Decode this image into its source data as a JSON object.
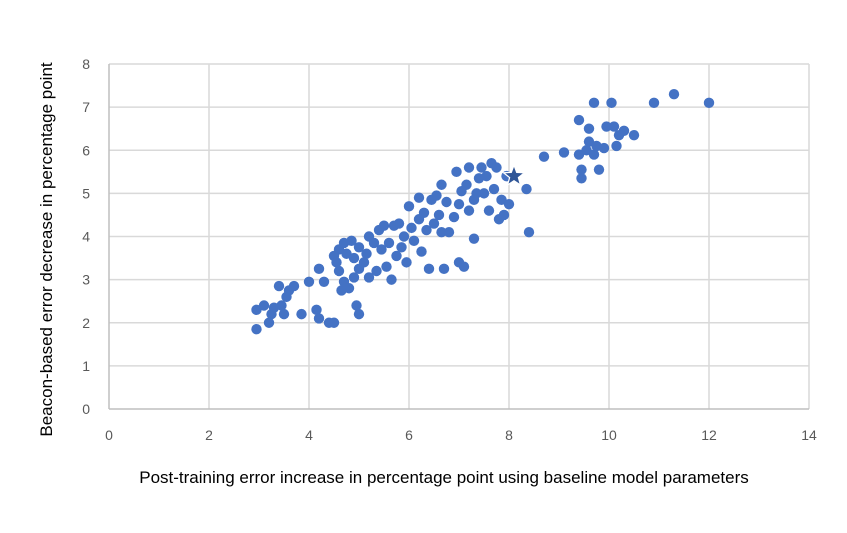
{
  "chart_data": {
    "type": "scatter",
    "title": "",
    "xlabel": "Post-training error increase in percentage point using baseline model parameters",
    "ylabel": "Beacon-based error decrease in percentage point",
    "xlim": [
      0,
      14
    ],
    "ylim": [
      0,
      8
    ],
    "xticks": [
      0,
      2,
      4,
      6,
      8,
      10,
      12,
      14
    ],
    "yticks": [
      0,
      1,
      2,
      3,
      4,
      5,
      6,
      7,
      8
    ],
    "grid": true,
    "legend": "none",
    "colors": {
      "point": "#4472C4",
      "highlight": "#2F5597",
      "grid": "#D9D9D9",
      "axis": "#BFBFBF"
    },
    "series": [
      {
        "points": [
          [
            2.95,
            1.85
          ],
          [
            2.95,
            2.3
          ],
          [
            3.1,
            2.4
          ],
          [
            3.2,
            2.0
          ],
          [
            3.25,
            2.2
          ],
          [
            3.3,
            2.35
          ],
          [
            3.4,
            2.85
          ],
          [
            3.45,
            2.4
          ],
          [
            3.5,
            2.2
          ],
          [
            3.55,
            2.6
          ],
          [
            3.6,
            2.75
          ],
          [
            3.7,
            2.85
          ],
          [
            3.85,
            2.2
          ],
          [
            4.0,
            2.95
          ],
          [
            4.15,
            2.3
          ],
          [
            4.2,
            3.25
          ],
          [
            4.2,
            2.1
          ],
          [
            4.3,
            2.95
          ],
          [
            4.4,
            2.0
          ],
          [
            4.5,
            2.0
          ],
          [
            4.5,
            3.55
          ],
          [
            4.55,
            3.4
          ],
          [
            4.6,
            3.2
          ],
          [
            4.6,
            3.7
          ],
          [
            4.65,
            2.75
          ],
          [
            4.7,
            3.85
          ],
          [
            4.7,
            2.95
          ],
          [
            4.75,
            3.6
          ],
          [
            4.8,
            2.8
          ],
          [
            4.85,
            3.9
          ],
          [
            4.9,
            3.05
          ],
          [
            4.9,
            3.5
          ],
          [
            4.95,
            2.4
          ],
          [
            5.0,
            3.75
          ],
          [
            5.0,
            3.25
          ],
          [
            5.0,
            2.2
          ],
          [
            5.1,
            3.4
          ],
          [
            5.15,
            3.6
          ],
          [
            5.2,
            3.05
          ],
          [
            5.2,
            4.0
          ],
          [
            5.3,
            3.85
          ],
          [
            5.35,
            3.2
          ],
          [
            5.4,
            4.15
          ],
          [
            5.45,
            3.7
          ],
          [
            5.5,
            4.25
          ],
          [
            5.55,
            3.3
          ],
          [
            5.6,
            3.85
          ],
          [
            5.65,
            3.0
          ],
          [
            5.7,
            4.25
          ],
          [
            5.75,
            3.55
          ],
          [
            5.8,
            4.3
          ],
          [
            5.85,
            3.75
          ],
          [
            5.9,
            4.0
          ],
          [
            5.95,
            3.4
          ],
          [
            6.0,
            4.7
          ],
          [
            6.05,
            4.2
          ],
          [
            6.1,
            3.9
          ],
          [
            6.2,
            4.9
          ],
          [
            6.2,
            4.4
          ],
          [
            6.25,
            3.65
          ],
          [
            6.3,
            4.55
          ],
          [
            6.35,
            4.15
          ],
          [
            6.4,
            3.25
          ],
          [
            6.45,
            4.85
          ],
          [
            6.5,
            4.3
          ],
          [
            6.55,
            4.95
          ],
          [
            6.6,
            4.5
          ],
          [
            6.65,
            4.1
          ],
          [
            6.65,
            5.2
          ],
          [
            6.7,
            3.25
          ],
          [
            6.75,
            4.8
          ],
          [
            6.8,
            4.1
          ],
          [
            6.9,
            4.45
          ],
          [
            6.95,
            5.5
          ],
          [
            7.0,
            3.4
          ],
          [
            7.0,
            4.75
          ],
          [
            7.05,
            5.05
          ],
          [
            7.1,
            3.3
          ],
          [
            7.15,
            5.2
          ],
          [
            7.2,
            4.6
          ],
          [
            7.2,
            5.6
          ],
          [
            7.3,
            3.95
          ],
          [
            7.3,
            4.85
          ],
          [
            7.35,
            5.0
          ],
          [
            7.4,
            5.35
          ],
          [
            7.45,
            5.6
          ],
          [
            7.5,
            5.0
          ],
          [
            7.55,
            5.4
          ],
          [
            7.6,
            4.6
          ],
          [
            7.65,
            5.7
          ],
          [
            7.7,
            5.1
          ],
          [
            7.75,
            5.6
          ],
          [
            7.8,
            4.4
          ],
          [
            7.85,
            4.85
          ],
          [
            7.9,
            4.5
          ],
          [
            7.95,
            5.4
          ],
          [
            8.0,
            4.75
          ],
          [
            8.35,
            5.1
          ],
          [
            8.4,
            4.1
          ],
          [
            8.7,
            5.85
          ],
          [
            9.1,
            5.95
          ],
          [
            9.4,
            6.7
          ],
          [
            9.4,
            5.9
          ],
          [
            9.45,
            5.55
          ],
          [
            9.45,
            5.35
          ],
          [
            9.55,
            6.0
          ],
          [
            9.6,
            6.2
          ],
          [
            9.6,
            6.5
          ],
          [
            9.7,
            5.9
          ],
          [
            9.7,
            7.1
          ],
          [
            9.75,
            6.1
          ],
          [
            9.8,
            5.55
          ],
          [
            9.9,
            6.05
          ],
          [
            9.95,
            6.55
          ],
          [
            10.05,
            7.1
          ],
          [
            10.1,
            6.55
          ],
          [
            10.15,
            6.1
          ],
          [
            10.2,
            6.35
          ],
          [
            10.3,
            6.45
          ],
          [
            10.5,
            6.35
          ],
          [
            10.9,
            7.1
          ],
          [
            11.3,
            7.3
          ],
          [
            12.0,
            7.1
          ]
        ]
      },
      {
        "marker": "star",
        "points": [
          [
            8.1,
            5.4
          ]
        ]
      }
    ]
  }
}
